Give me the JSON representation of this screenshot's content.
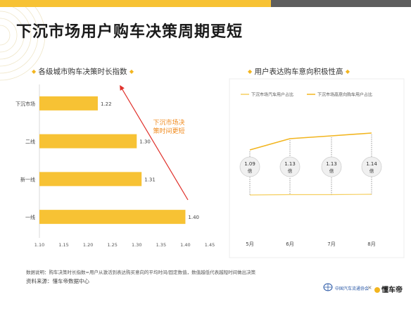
{
  "page_title": "下沉市场用户购车决策周期更短",
  "left_panel_title": "各级城市购车决策时长指数",
  "right_panel_title": "用户表达购车意向积极性高",
  "annotation": "下沉市场决策时间更短",
  "footer": {
    "note": "数据说明：购车决策时长指数=用户从激活到表达购买意向的平均时间/固定数值，数值越低代表越短时间做出决策",
    "source": "资料来源：懂车帝数据中心",
    "brand_left": "中国汽车流通协会",
    "brand_sep": "×",
    "brand_right": "懂车帝"
  },
  "colors": {
    "accent": "#f7c234",
    "line_high": "#f2b51f",
    "line_low": "#f5cf60",
    "arrow": "#e0302a",
    "annotation": "#f08a1c"
  },
  "chart_data": [
    {
      "type": "bar",
      "orientation": "horizontal",
      "categories": [
        "下沉市场",
        "二线",
        "新一线",
        "一线"
      ],
      "values": [
        1.22,
        1.3,
        1.31,
        1.4
      ],
      "value_labels": [
        "1.22",
        "1.30",
        "1.31",
        "1.40"
      ],
      "xlim": [
        1.1,
        1.45
      ],
      "xticks": [
        "1.10",
        "1.15",
        "1.20",
        "1.25",
        "1.30",
        "1.35",
        "1.40",
        "1.45"
      ],
      "grid": false
    },
    {
      "type": "line",
      "x": [
        "5月",
        "6月",
        "7月",
        "8月"
      ],
      "legend_position": "top",
      "series": [
        {
          "name": "下沉市场汽车用户占比"
        },
        {
          "name": "下沉市场高意向购车用户占比"
        }
      ],
      "ratio_labels": [
        {
          "value": "1.09",
          "unit": "倍"
        },
        {
          "value": "1.13",
          "unit": "倍"
        },
        {
          "value": "1.13",
          "unit": "倍"
        },
        {
          "value": "1.14",
          "unit": "倍"
        }
      ]
    }
  ]
}
